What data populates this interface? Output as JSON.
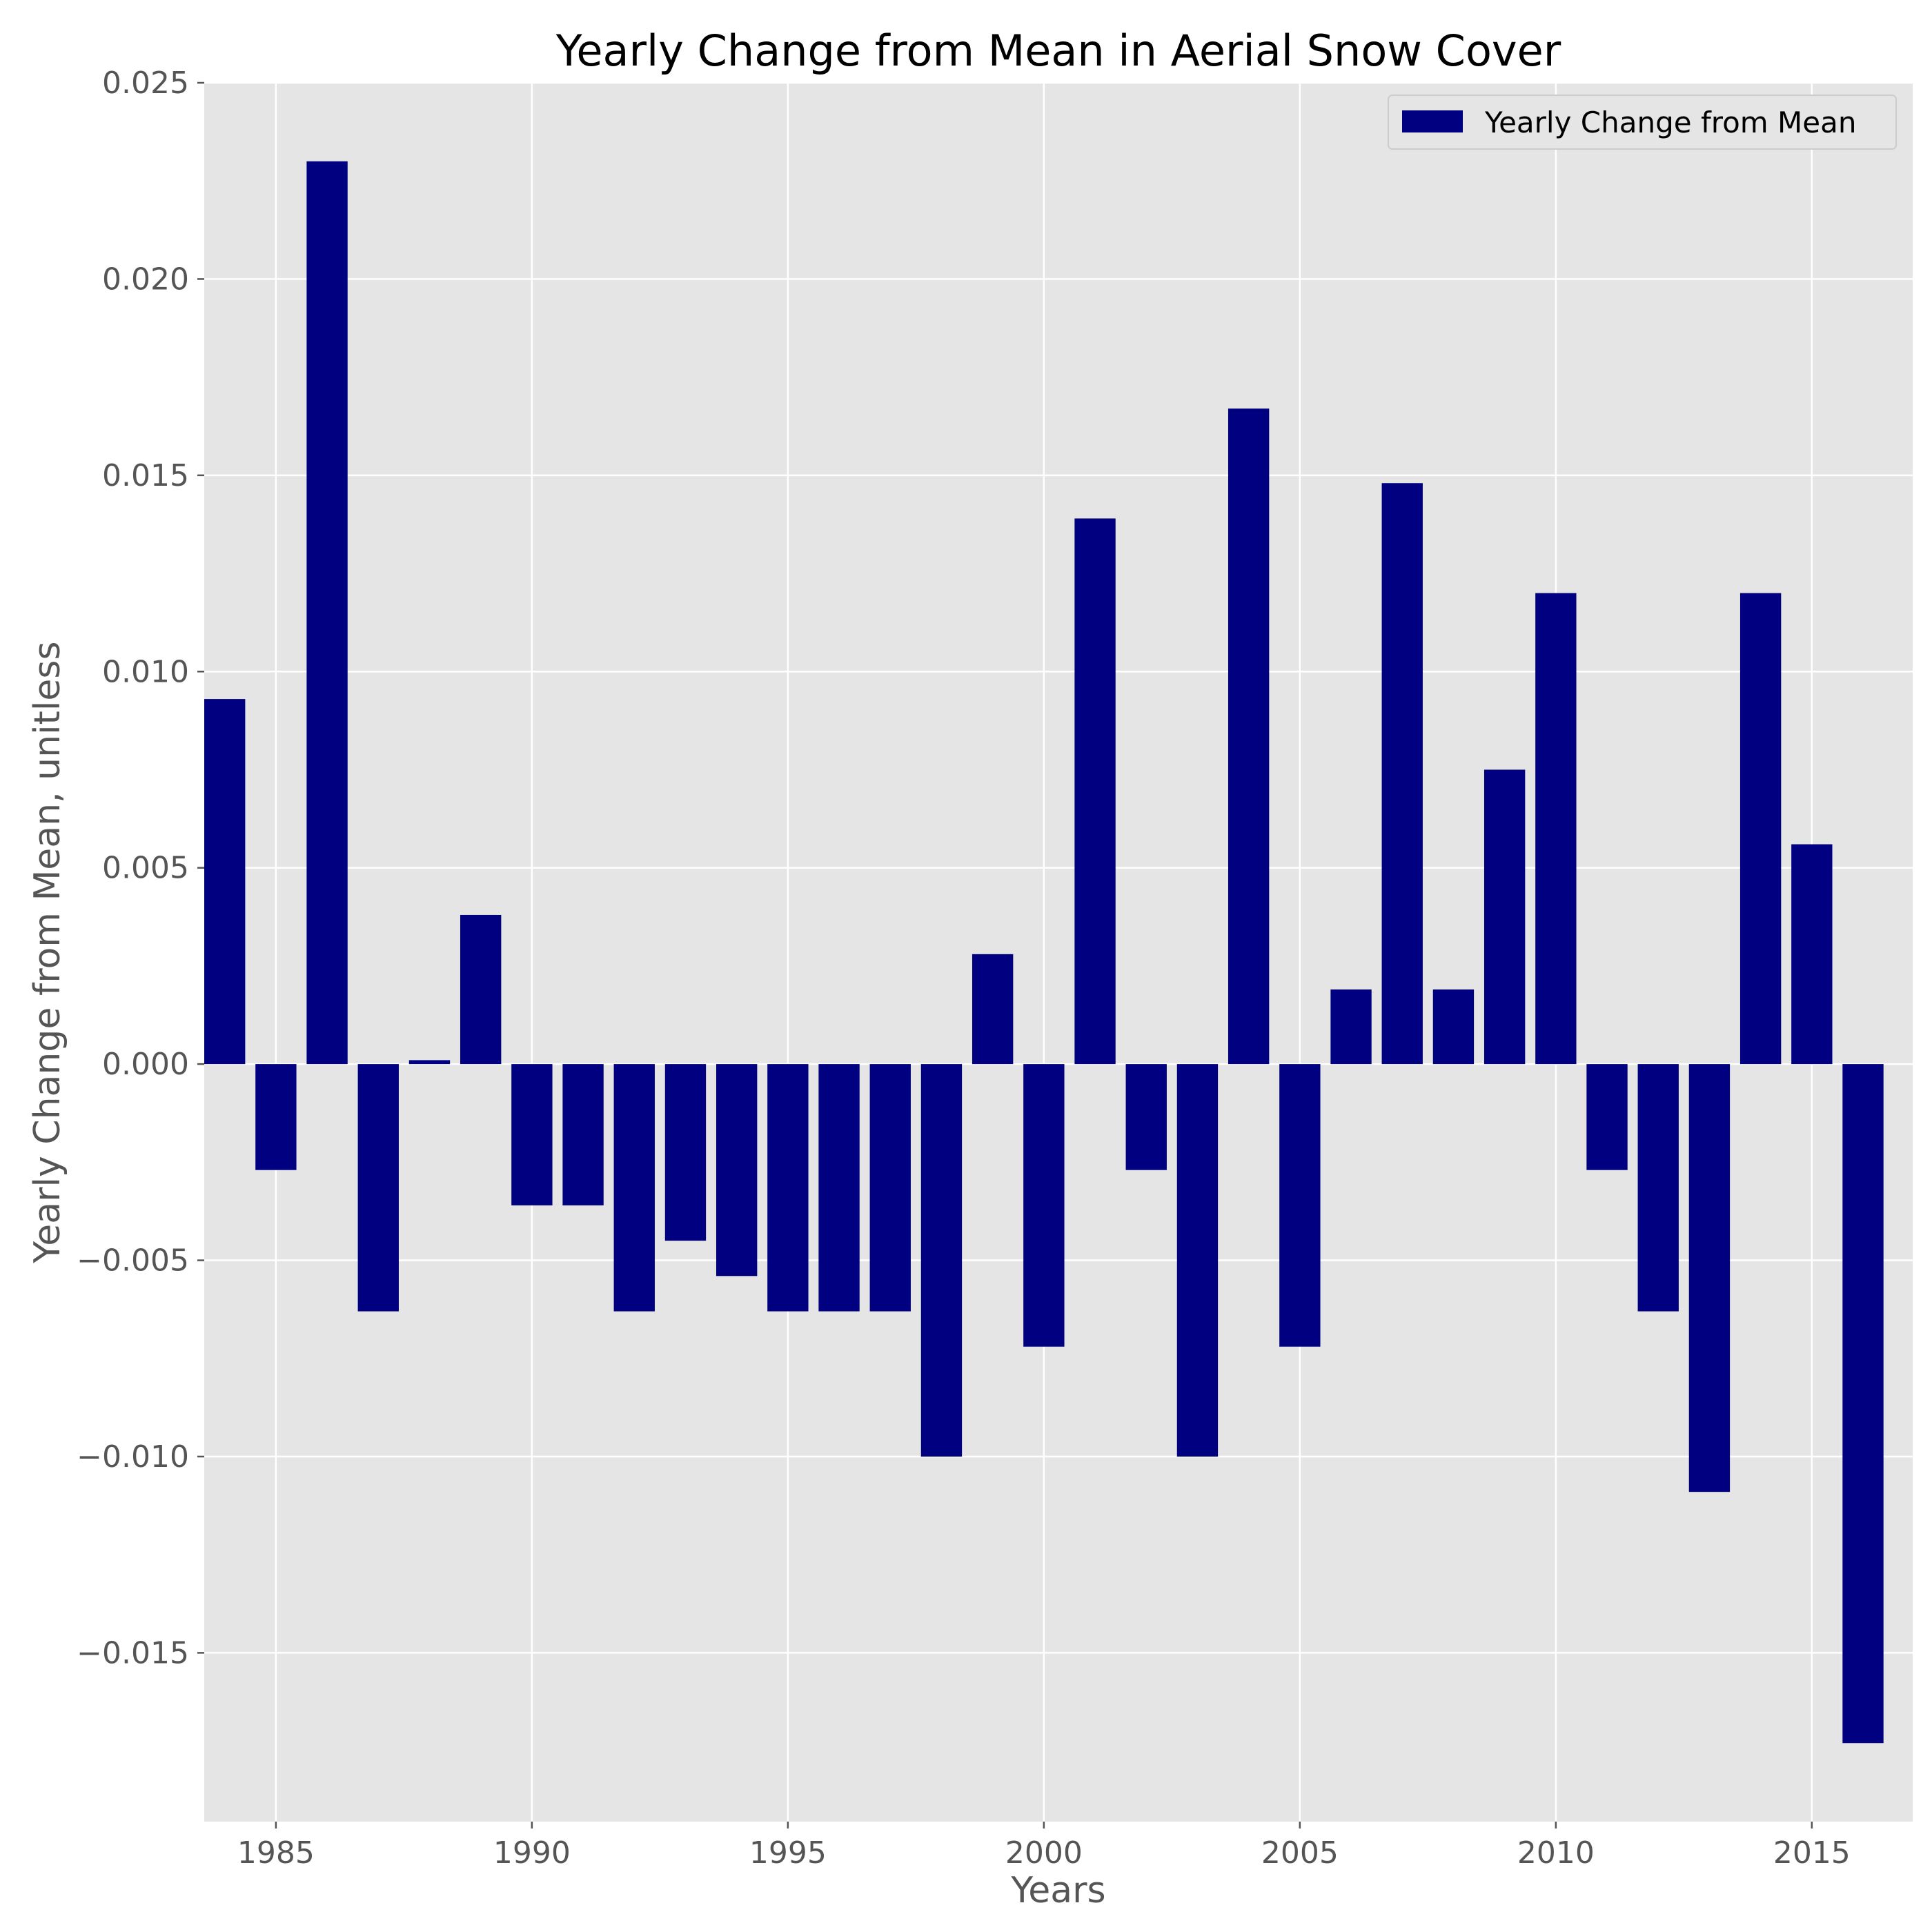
{
  "chart_data": {
    "type": "bar",
    "title": "Yearly Change from Mean in Aerial Snow Cover",
    "xlabel": "Years",
    "ylabel": "Yearly Change from Mean, unitless",
    "legend": {
      "label": "Yearly Change from Mean",
      "placement": "top-right"
    },
    "grid": true,
    "colors": {
      "bar": "#000080",
      "plot_background": "#e5e5e5",
      "grid": "#ffffff"
    },
    "xlim": [
      1984,
      1986.6
    ],
    "xlim_full": [
      1984,
      2017.1
    ],
    "ylim": [
      -0.0193,
      0.025
    ],
    "x_ticks": [
      1985,
      1990,
      1995,
      2000,
      2005,
      2010,
      2015
    ],
    "x_tick_labels": [
      "1985",
      "1990",
      "1995",
      "2000",
      "2005",
      "2010",
      "2015"
    ],
    "y_ticks": [
      -0.015,
      -0.01,
      -0.005,
      0.0,
      0.005,
      0.01,
      0.015,
      0.02,
      0.025
    ],
    "y_tick_labels": [
      "−0.015",
      "−0.010",
      "−0.005",
      "0.000",
      "0.005",
      "0.010",
      "0.015",
      "0.020",
      "0.025"
    ],
    "categories": [
      1984,
      1985,
      1986,
      1987,
      1988,
      1989,
      1990,
      1991,
      1992,
      1993,
      1994,
      1995,
      1996,
      1997,
      1998,
      1999,
      2000,
      2001,
      2002,
      2003,
      2004,
      2005,
      2006,
      2007,
      2008,
      2009,
      2010,
      2011,
      2012,
      2013,
      2014,
      2015,
      2016
    ],
    "values": [
      0.0093,
      -0.0027,
      0.023,
      -0.0063,
      0.0001,
      0.0038,
      -0.0036,
      -0.0036,
      -0.0063,
      -0.0045,
      -0.0054,
      -0.0063,
      -0.0063,
      -0.0063,
      -0.01,
      0.0028,
      -0.0072,
      0.0139,
      -0.0027,
      -0.01,
      0.0167,
      -0.0072,
      0.0019,
      0.0148,
      0.0019,
      0.0075,
      0.012,
      -0.0027,
      -0.0063,
      -0.0109,
      0.012,
      0.0056,
      -0.0173
    ]
  }
}
